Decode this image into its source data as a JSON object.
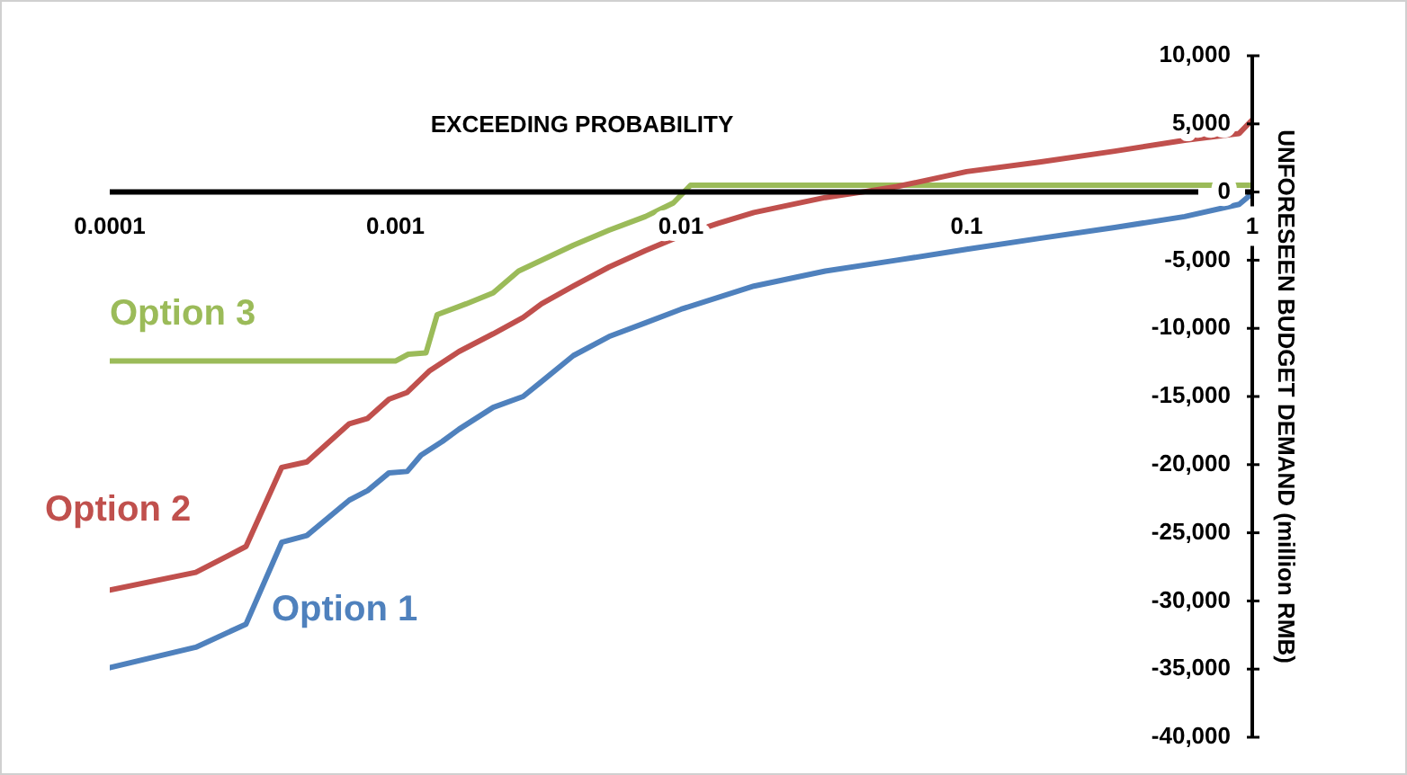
{
  "chart_data": {
    "type": "line",
    "xlabel": "EXCEEDING PROBABILITY",
    "ylabel": "UNFORESEEN BUDGET DEMAND (million RMB)",
    "log": "x",
    "grid": false,
    "legend": false,
    "marker": "none",
    "line_style": "solid",
    "xlim": [
      0.0001,
      1
    ],
    "xticks": [
      0.0001,
      0.001,
      0.01,
      0.1,
      1
    ],
    "ylim": [
      -40000,
      10000
    ],
    "yticks": [
      {
        "value": -40000,
        "label": "-40,000"
      },
      {
        "value": -35000,
        "label": "-35,000"
      },
      {
        "value": -30000,
        "label": "-30,000"
      },
      {
        "value": -25000,
        "label": "-25,000"
      },
      {
        "value": -20000,
        "label": "-20,000"
      },
      {
        "value": -15000,
        "label": "-15,000"
      },
      {
        "value": -10000,
        "label": "-10,000"
      },
      {
        "value": -5000,
        "label": "-5,000"
      },
      0,
      {
        "value": 5000,
        "label": "5,000"
      },
      {
        "value": 10000,
        "label": "10,000"
      }
    ],
    "series": [
      {
        "name": "Option 1",
        "color": "#4f81bd",
        "x": [
          0.0001,
          0.0002,
          0.0003,
          0.0004,
          0.00049,
          0.00069,
          0.0008,
          0.00095,
          0.0011,
          0.00123,
          0.00146,
          0.00167,
          0.0022,
          0.0028,
          0.00325,
          0.0042,
          0.0056,
          0.0075,
          0.01,
          0.018,
          0.032,
          0.057,
          0.1,
          0.18,
          0.33,
          0.58,
          0.9,
          1
        ],
        "values": [
          -34900,
          -33400,
          -31700,
          -25700,
          -25200,
          -22600,
          -21900,
          -20600,
          -20500,
          -19300,
          -18300,
          -17400,
          -15800,
          -15000,
          -13900,
          -12000,
          -10600,
          -9600,
          -8600,
          -6900,
          -5800,
          -5000,
          -4200,
          -3400,
          -2600,
          -1800,
          -900,
          -100
        ]
      },
      {
        "name": "Option 2",
        "color": "#c0504d",
        "x": [
          0.0001,
          0.0002,
          0.0003,
          0.0004,
          0.00049,
          0.00069,
          0.0008,
          0.00095,
          0.0011,
          0.00132,
          0.00167,
          0.0022,
          0.0028,
          0.00325,
          0.0042,
          0.0056,
          0.0075,
          0.01,
          0.0135,
          0.018,
          0.032,
          0.043,
          0.057,
          0.1,
          0.18,
          0.33,
          0.58,
          0.9,
          1
        ],
        "values": [
          -29200,
          -27900,
          -26000,
          -20200,
          -19800,
          -17000,
          -16600,
          -15200,
          -14700,
          -13100,
          -11700,
          -10400,
          -9200,
          -8200,
          -6900,
          -5500,
          -4300,
          -3200,
          -2300,
          -1500,
          -400,
          0,
          400,
          1500,
          2200,
          3000,
          3800,
          4300,
          5300
        ]
      },
      {
        "name": "Option 3",
        "color": "#9bbb59",
        "x": [
          0.0001,
          0.001,
          0.00111,
          0.00128,
          0.0014,
          0.00177,
          0.0022,
          0.0027,
          0.0042,
          0.0056,
          0.0075,
          0.0094,
          0.0108,
          1
        ],
        "values": [
          -12400,
          -12400,
          -11900,
          -11800,
          -9000,
          -8200,
          -7400,
          -5800,
          -3900,
          -2800,
          -1800,
          -800,
          500,
          500
        ]
      }
    ]
  }
}
